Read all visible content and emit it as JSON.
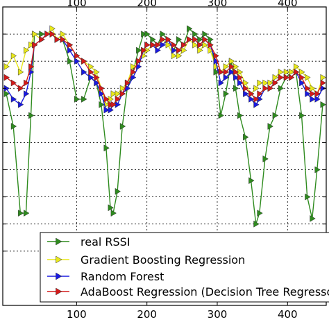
{
  "chart_data": {
    "type": "line",
    "title": "",
    "xlabel": "",
    "ylabel": "",
    "xlim": [
      -5,
      455
    ],
    "x_ticks": [
      100,
      200,
      300,
      400
    ],
    "x_tick_labels": [
      "100",
      "200",
      "300",
      "400"
    ],
    "x_ticks_top": [
      100,
      200,
      300,
      400
    ],
    "ylim": [
      -95,
      -40
    ],
    "y_ticks": [
      -45,
      -50,
      -55,
      -60,
      -65,
      -70,
      -75,
      -80,
      -85
    ],
    "grid": true,
    "legend_position": "lower-right",
    "series": [
      {
        "name": "real RSSI",
        "color": "#2e8b1e",
        "marker": "triangle-right",
        "x": [
          0,
          10,
          20,
          28,
          35,
          40,
          50,
          58,
          65,
          72,
          80,
          90,
          100,
          110,
          120,
          128,
          135,
          142,
          148,
          152,
          158,
          165,
          172,
          180,
          188,
          195,
          200,
          208,
          215,
          222,
          230,
          238,
          245,
          252,
          260,
          268,
          275,
          282,
          290,
          298,
          305,
          312,
          320,
          326,
          332,
          340,
          348,
          355,
          360,
          368,
          375,
          382,
          390,
          398,
          405,
          412,
          420,
          428,
          435,
          442,
          450
        ],
        "values": [
          -56,
          -62,
          -78,
          -78,
          -60,
          -45,
          -45,
          -45,
          -45,
          -46,
          -46,
          -50,
          -57,
          -57,
          -53,
          -54,
          -58,
          -66,
          -77,
          -78,
          -74,
          -62,
          -55,
          -52,
          -48,
          -45,
          -45,
          -46,
          -47,
          -45,
          -46,
          -48,
          -46,
          -47,
          -44,
          -45,
          -46,
          -45,
          -46,
          -52,
          -60,
          -56,
          -50,
          -55,
          -60,
          -64,
          -72,
          -80,
          -78,
          -68,
          -62,
          -60,
          -55,
          -53,
          -52,
          -52,
          -60,
          -75,
          -79,
          -70,
          -58
        ]
      },
      {
        "name": "Gradient Boosting Regression",
        "color": "#e8e81a",
        "marker": "triangle-right",
        "x": [
          0,
          10,
          20,
          28,
          35,
          40,
          50,
          58,
          65,
          72,
          80,
          90,
          100,
          110,
          120,
          128,
          135,
          142,
          148,
          152,
          158,
          165,
          172,
          180,
          188,
          195,
          200,
          208,
          215,
          222,
          230,
          238,
          245,
          252,
          260,
          268,
          275,
          282,
          290,
          298,
          305,
          312,
          320,
          326,
          332,
          340,
          348,
          355,
          360,
          368,
          375,
          382,
          390,
          398,
          405,
          412,
          420,
          428,
          435,
          442,
          450
        ],
        "values": [
          -51,
          -49,
          -52,
          -48,
          -47,
          -45,
          -46,
          -45,
          -44,
          -46,
          -45,
          -47,
          -49,
          -50,
          -51,
          -52,
          -55,
          -58,
          -57,
          -56,
          -56,
          -55,
          -54,
          -51,
          -50,
          -49,
          -48,
          -47,
          -47,
          -46,
          -47,
          -49,
          -49,
          -48,
          -46,
          -47,
          -48,
          -47,
          -48,
          -51,
          -52,
          -51,
          -50,
          -51,
          -52,
          -54,
          -56,
          -55,
          -54,
          -54,
          -54,
          -53,
          -52,
          -52,
          -52,
          -51,
          -52,
          -53,
          -55,
          -56,
          -53
        ]
      },
      {
        "name": "Random Forest",
        "color": "#1a1ae0",
        "marker": "triangle-right",
        "x": [
          0,
          10,
          20,
          28,
          35,
          40,
          50,
          58,
          65,
          72,
          80,
          90,
          100,
          110,
          120,
          128,
          135,
          142,
          148,
          152,
          158,
          165,
          172,
          180,
          188,
          195,
          200,
          208,
          215,
          222,
          230,
          238,
          245,
          252,
          260,
          268,
          275,
          282,
          290,
          298,
          305,
          312,
          320,
          326,
          332,
          340,
          348,
          355,
          360,
          368,
          375,
          382,
          390,
          398,
          405,
          412,
          420,
          428,
          435,
          442,
          450
        ],
        "values": [
          -55,
          -57,
          -58,
          -56,
          -52,
          -47,
          -46,
          -45,
          -45,
          -46,
          -46,
          -48,
          -50,
          -52,
          -53,
          -54,
          -56,
          -59,
          -59,
          -58,
          -58,
          -56,
          -55,
          -53,
          -51,
          -48,
          -47,
          -47,
          -48,
          -47,
          -46,
          -48,
          -48,
          -47,
          -46,
          -46,
          -47,
          -46,
          -47,
          -50,
          -54,
          -53,
          -52,
          -53,
          -54,
          -56,
          -57,
          -58,
          -57,
          -55,
          -55,
          -54,
          -53,
          -53,
          -53,
          -52,
          -54,
          -56,
          -57,
          -57,
          -55
        ]
      },
      {
        "name": "AdaBoost Regression (Decision Tree Regressor)",
        "color": "#d41a1a",
        "marker": "triangle-right",
        "x": [
          0,
          10,
          20,
          28,
          35,
          40,
          50,
          58,
          65,
          72,
          80,
          90,
          100,
          110,
          120,
          128,
          135,
          142,
          148,
          152,
          158,
          165,
          172,
          180,
          188,
          195,
          200,
          208,
          215,
          222,
          230,
          238,
          245,
          252,
          260,
          268,
          275,
          282,
          290,
          298,
          305,
          312,
          320,
          326,
          332,
          340,
          348,
          355,
          360,
          368,
          375,
          382,
          390,
          398,
          405,
          412,
          420,
          428,
          435,
          442,
          450
        ],
        "values": [
          -53,
          -54,
          -55,
          -54,
          -51,
          -47,
          -46,
          -45,
          -45,
          -46,
          -46,
          -47,
          -49,
          -50,
          -52,
          -53,
          -55,
          -57,
          -58,
          -58,
          -57,
          -56,
          -54,
          -52,
          -50,
          -48,
          -47,
          -47,
          -47,
          -46,
          -46,
          -47,
          -48,
          -47,
          -46,
          -46,
          -47,
          -46,
          -47,
          -49,
          -52,
          -52,
          -51,
          -52,
          -53,
          -55,
          -56,
          -57,
          -56,
          -55,
          -55,
          -54,
          -53,
          -53,
          -53,
          -52,
          -53,
          -55,
          -56,
          -56,
          -54
        ]
      }
    ]
  }
}
